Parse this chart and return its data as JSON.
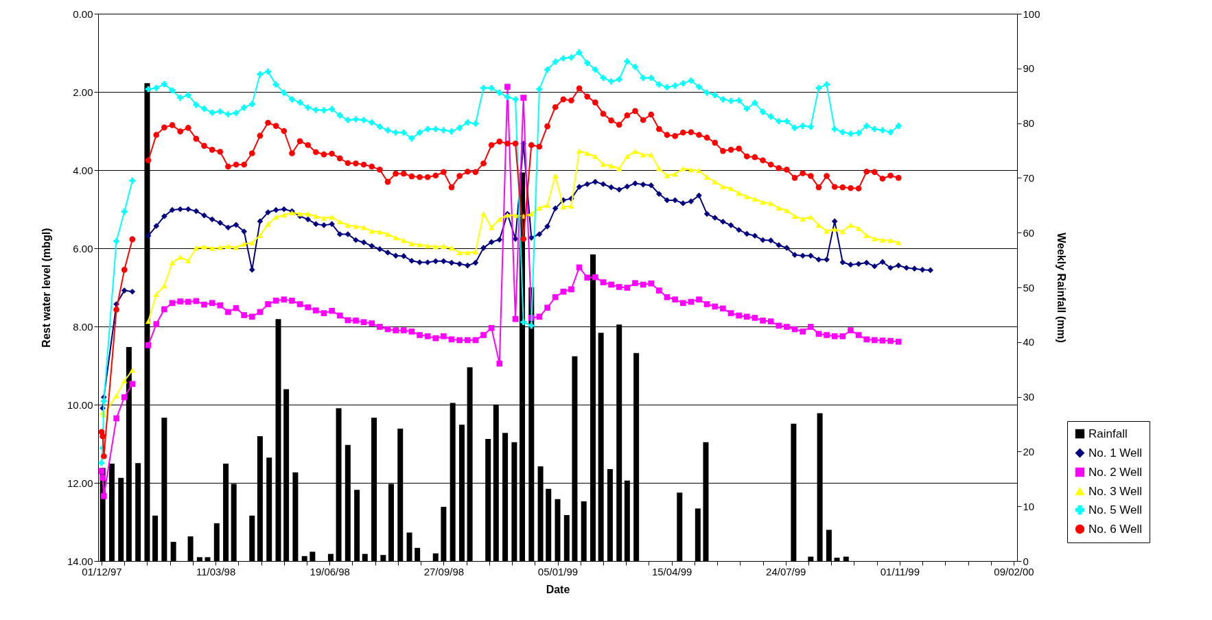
{
  "chart_data": {
    "type": "line",
    "xlabel": "Date",
    "ylabel": "Rest water level (mbgl)",
    "y2label": "Weekly Rainfall (mm)",
    "xlim": [
      "1997-12-01",
      "2000-02-09"
    ],
    "xticks": [
      {
        "value": "1997-12-01",
        "label": "01/12/97"
      },
      {
        "value": "1997-12-21",
        "label": null
      },
      {
        "value": "1998-01-10",
        "label": null
      },
      {
        "value": "1998-01-30",
        "label": null
      },
      {
        "value": "1998-02-19",
        "label": null
      },
      {
        "value": "1998-03-11",
        "label": "11/03/98"
      },
      {
        "value": "1998-03-31",
        "label": null
      },
      {
        "value": "1998-04-20",
        "label": null
      },
      {
        "value": "1998-05-10",
        "label": null
      },
      {
        "value": "1998-05-30",
        "label": null
      },
      {
        "value": "1998-06-19",
        "label": "19/06/98"
      },
      {
        "value": "1998-07-09",
        "label": null
      },
      {
        "value": "1998-07-29",
        "label": null
      },
      {
        "value": "1998-08-18",
        "label": null
      },
      {
        "value": "1998-09-07",
        "label": null
      },
      {
        "value": "1998-09-27",
        "label": "27/09/98"
      },
      {
        "value": "1998-10-17",
        "label": null
      },
      {
        "value": "1998-11-06",
        "label": null
      },
      {
        "value": "1998-11-26",
        "label": null
      },
      {
        "value": "1998-12-16",
        "label": null
      },
      {
        "value": "1999-01-05",
        "label": "05/01/99"
      },
      {
        "value": "1999-01-25",
        "label": null
      },
      {
        "value": "1999-02-14",
        "label": null
      },
      {
        "value": "1999-03-06",
        "label": null
      },
      {
        "value": "1999-03-26",
        "label": null
      },
      {
        "value": "1999-04-15",
        "label": "15/04/99"
      },
      {
        "value": "1999-05-05",
        "label": null
      },
      {
        "value": "1999-05-25",
        "label": null
      },
      {
        "value": "1999-06-14",
        "label": null
      },
      {
        "value": "1999-07-04",
        "label": null
      },
      {
        "value": "1999-07-24",
        "label": "24/07/99"
      },
      {
        "value": "1999-08-13",
        "label": null
      },
      {
        "value": "1999-09-02",
        "label": null
      },
      {
        "value": "1999-09-22",
        "label": null
      },
      {
        "value": "1999-10-12",
        "label": null
      },
      {
        "value": "1999-11-01",
        "label": "01/11/99"
      },
      {
        "value": "1999-11-21",
        "label": null
      },
      {
        "value": "1999-12-11",
        "label": null
      },
      {
        "value": "1999-12-31",
        "label": null
      },
      {
        "value": "2000-01-20",
        "label": null
      },
      {
        "value": "2000-02-09",
        "label": "09/02/00"
      }
    ],
    "ylim": [
      14,
      0
    ],
    "yticks": [
      {
        "value": 0,
        "label": "0.00"
      },
      {
        "value": 2,
        "label": "2.00"
      },
      {
        "value": 4,
        "label": "4.00"
      },
      {
        "value": 6,
        "label": "6.00"
      },
      {
        "value": 8,
        "label": "8.00"
      },
      {
        "value": 10,
        "label": "10.00"
      },
      {
        "value": 12,
        "label": "12.00"
      },
      {
        "value": 14,
        "label": "14.00"
      }
    ],
    "y2lim": [
      0,
      100
    ],
    "y2ticks": [
      0,
      10,
      20,
      30,
      40,
      50,
      60,
      70,
      80,
      90,
      100
    ],
    "grid": "y",
    "legend": "bottom right",
    "line_style": "solid",
    "x": [
      "1997-12-01",
      "1997-12-02",
      "1997-12-03",
      "1997-12-14",
      "1997-12-21",
      "1997-12-28",
      "1998-01-04",
      "1998-01-11",
      "1998-01-18",
      "1998-01-25",
      "1998-02-01",
      "1998-02-08",
      "1998-02-15",
      "1998-02-22",
      "1998-03-01",
      "1998-03-08",
      "1998-03-15",
      "1998-03-22",
      "1998-03-29",
      "1998-04-05",
      "1998-04-12",
      "1998-04-19",
      "1998-04-26",
      "1998-05-03",
      "1998-05-10",
      "1998-05-17",
      "1998-05-24",
      "1998-05-31",
      "1998-06-07",
      "1998-06-14",
      "1998-06-21",
      "1998-06-28",
      "1998-07-05",
      "1998-07-12",
      "1998-07-19",
      "1998-07-26",
      "1998-08-02",
      "1998-08-09",
      "1998-08-16",
      "1998-08-23",
      "1998-08-30",
      "1998-09-06",
      "1998-09-13",
      "1998-09-20",
      "1998-09-27",
      "1998-10-04",
      "1998-10-11",
      "1998-10-18",
      "1998-10-25",
      "1998-11-01",
      "1998-11-08",
      "1998-11-15",
      "1998-11-22",
      "1998-11-29",
      "1998-12-06",
      "1998-12-13",
      "1998-12-20",
      "1998-12-27",
      "1999-01-03",
      "1999-01-10",
      "1999-01-17",
      "1999-01-24",
      "1999-01-31",
      "1999-02-07",
      "1999-02-14",
      "1999-02-21",
      "1999-02-28",
      "1999-03-07",
      "1999-03-14",
      "1999-03-21",
      "1999-03-28",
      "1999-04-04",
      "1999-04-11",
      "1999-04-18",
      "1999-04-25",
      "1999-05-02",
      "1999-05-09",
      "1999-05-16",
      "1999-05-23",
      "1999-05-30",
      "1999-06-06",
      "1999-06-13",
      "1999-06-20",
      "1999-06-27",
      "1999-07-04",
      "1999-07-11",
      "1999-07-18",
      "1999-07-25",
      "1999-08-01",
      "1999-08-08",
      "1999-08-15",
      "1999-08-22",
      "1999-08-29",
      "1999-09-05",
      "1999-09-12",
      "1999-09-19",
      "1999-09-26",
      "1999-10-03",
      "1999-10-10",
      "1999-10-17",
      "1999-10-24",
      "1999-10-31",
      "1999-11-07",
      "1999-11-14",
      "1999-11-21",
      "1999-11-28"
    ],
    "series": [
      {
        "name": "Rainfall",
        "type": "bar",
        "axis": "y2",
        "color": "#000000",
        "x": [
          "1997-12-02",
          "1997-12-10",
          "1997-12-18",
          "1997-12-25",
          "1998-01-02",
          "1998-01-10",
          "1998-01-17",
          "1998-01-25",
          "1998-02-02",
          "1998-02-09",
          "1998-02-17",
          "1998-02-25",
          "1998-03-04",
          "1998-03-12",
          "1998-03-20",
          "1998-03-27",
          "1998-04-04",
          "1998-04-12",
          "1998-04-19",
          "1998-04-27",
          "1998-05-05",
          "1998-05-12",
          "1998-05-20",
          "1998-05-28",
          "1998-06-04",
          "1998-06-12",
          "1998-06-20",
          "1998-06-27",
          "1998-07-05",
          "1998-07-13",
          "1998-07-20",
          "1998-07-28",
          "1998-08-05",
          "1998-08-12",
          "1998-08-20",
          "1998-08-28",
          "1998-09-04",
          "1998-09-12",
          "1998-09-20",
          "1998-09-27",
          "1998-10-05",
          "1998-10-13",
          "1998-10-20",
          "1998-10-28",
          "1998-11-05",
          "1998-11-12",
          "1998-11-20",
          "1998-11-28",
          "1998-12-05",
          "1998-12-13",
          "1998-12-21",
          "1998-12-28",
          "1999-01-05",
          "1999-01-13",
          "1999-01-20",
          "1999-01-28",
          "1999-02-05",
          "1999-02-12",
          "1999-02-20",
          "1999-02-28",
          "1999-03-07",
          "1999-03-15",
          "1999-03-23",
          "1999-03-30",
          "1999-04-07",
          "1999-04-15",
          "1999-04-22",
          "1999-04-30",
          "1999-05-08",
          "1999-05-15",
          "1999-05-23",
          "1999-05-31",
          "1999-06-07",
          "1999-06-15",
          "1999-06-23",
          "1999-06-30",
          "1999-07-08",
          "1999-07-16",
          "1999-07-23",
          "1999-07-31",
          "1999-08-08",
          "1999-08-15",
          "1999-08-23",
          "1999-08-31",
          "1999-09-07",
          "1999-09-15"
        ],
        "values": [
          17,
          17.8,
          15.2,
          39.1,
          17.9,
          87.3,
          8.3,
          26.2,
          3.5,
          null,
          4.5,
          0.7,
          0.7,
          6.9,
          17.8,
          14.1,
          null,
          8.3,
          22.8,
          18.9,
          44.2,
          31.4,
          16.2,
          0.9,
          1.7,
          null,
          1.3,
          27.9,
          21.2,
          13.0,
          1.3,
          26.2,
          1.1,
          14.1,
          24.2,
          5.2,
          2.4,
          null,
          1.4,
          9.9,
          28.9,
          24.9,
          35.4,
          null,
          22.3,
          28.6,
          23.4,
          21.7,
          71,
          50,
          17.3,
          13.2,
          11.3,
          8.4,
          37.4,
          10.9,
          56.0,
          41.7,
          16.8,
          43.2,
          14.7,
          38.0,
          null,
          null,
          null,
          null,
          12.5,
          null,
          9.6,
          21.7,
          null,
          null,
          null,
          null,
          null,
          null,
          null,
          null,
          null,
          25.1,
          null,
          0.8,
          27.0,
          5.7,
          0.6,
          0.8
        ]
      },
      {
        "name": "No. 1 Well",
        "color": "#000080",
        "marker": "diamond",
        "values": [
          null,
          10.09,
          9.81,
          7.43,
          7.08,
          7.11,
          null,
          5.68,
          5.43,
          5.18,
          5.02,
          5.0,
          5.0,
          5.05,
          5.16,
          5.26,
          5.35,
          5.47,
          5.4,
          5.57,
          6.55,
          5.31,
          5.08,
          5.02,
          5.0,
          5.05,
          5.18,
          5.26,
          5.38,
          5.41,
          5.38,
          5.64,
          5.64,
          5.79,
          5.85,
          5.94,
          6.02,
          6.11,
          6.19,
          6.2,
          6.32,
          6.36,
          6.36,
          6.33,
          6.33,
          6.37,
          6.4,
          6.44,
          6.37,
          5.99,
          5.84,
          5.78,
          5.12,
          5.76,
          3.32,
          5.73,
          5.64,
          5.44,
          4.98,
          4.77,
          4.73,
          4.43,
          4.36,
          4.3,
          4.36,
          4.44,
          4.5,
          4.42,
          4.34,
          4.37,
          4.39,
          4.61,
          4.77,
          4.77,
          4.85,
          4.8,
          4.65,
          5.12,
          5.22,
          5.32,
          5.41,
          5.53,
          5.63,
          5.68,
          5.79,
          5.8,
          5.92,
          5.99,
          6.17,
          6.19,
          6.19,
          6.29,
          6.29,
          5.31,
          6.36,
          6.42,
          6.4,
          6.37,
          6.46,
          6.35,
          6.5,
          6.44,
          6.5,
          6.52,
          6.55,
          6.56
        ]
      },
      {
        "name": "No. 2 Well",
        "color": "#ff00ff",
        "marker": "square",
        "values": [
          11.7,
          11.87,
          12.34,
          10.35,
          9.81,
          9.47,
          null,
          8.48,
          7.94,
          7.56,
          7.4,
          7.36,
          7.37,
          7.35,
          7.44,
          7.4,
          7.46,
          7.63,
          7.53,
          7.71,
          7.75,
          7.63,
          7.43,
          7.34,
          7.31,
          7.34,
          7.43,
          7.51,
          7.59,
          7.66,
          7.6,
          7.72,
          7.84,
          7.85,
          7.89,
          7.92,
          8.01,
          8.07,
          8.1,
          8.1,
          8.13,
          8.22,
          8.25,
          8.3,
          8.25,
          8.33,
          8.35,
          8.35,
          8.35,
          8.22,
          8.04,
          8.95,
          1.87,
          7.81,
          2.15,
          7.78,
          7.75,
          7.52,
          7.25,
          7.11,
          7.05,
          6.49,
          6.75,
          6.74,
          6.87,
          6.93,
          6.99,
          7.01,
          6.89,
          6.93,
          6.9,
          7.08,
          7.25,
          7.31,
          7.4,
          7.37,
          7.31,
          7.43,
          7.49,
          7.54,
          7.66,
          7.72,
          7.75,
          7.78,
          7.85,
          7.87,
          7.98,
          8.01,
          8.07,
          8.13,
          8.01,
          8.19,
          8.22,
          8.25,
          8.25,
          8.1,
          8.22,
          8.33,
          8.35,
          8.36,
          8.37,
          8.39,
          null,
          null,
          null,
          null
        ]
      },
      {
        "name": "No. 3 Well",
        "color": "#ffff00",
        "marker": "triangle",
        "values": [
          null,
          10.2,
          10.26,
          9.77,
          9.39,
          9.12,
          null,
          7.87,
          7.18,
          6.96,
          6.37,
          6.23,
          6.32,
          5.99,
          5.96,
          6.0,
          5.98,
          5.95,
          5.98,
          5.89,
          5.86,
          5.67,
          5.38,
          5.2,
          5.15,
          5.09,
          5.12,
          5.12,
          5.18,
          5.23,
          5.2,
          5.32,
          5.41,
          5.44,
          5.47,
          5.56,
          5.58,
          5.64,
          5.73,
          5.8,
          5.88,
          5.91,
          5.94,
          5.96,
          5.95,
          5.99,
          6.11,
          6.11,
          6.09,
          5.12,
          5.47,
          5.26,
          5.15,
          5.16,
          5.18,
          5.12,
          4.97,
          4.9,
          4.14,
          4.94,
          4.92,
          3.51,
          3.57,
          3.65,
          3.85,
          3.89,
          3.96,
          3.65,
          3.52,
          3.61,
          3.61,
          3.96,
          4.14,
          4.1,
          3.96,
          3.99,
          4.01,
          4.18,
          4.3,
          4.42,
          4.47,
          4.59,
          4.68,
          4.74,
          4.82,
          4.85,
          4.97,
          5.03,
          5.18,
          5.25,
          5.2,
          5.41,
          5.56,
          5.51,
          5.57,
          5.41,
          5.49,
          5.67,
          5.76,
          5.79,
          5.8,
          5.85,
          null,
          null,
          null,
          null
        ]
      },
      {
        "name": "No. 5 Well",
        "color": "#00ffff",
        "marker": "cross",
        "values": [
          11.49,
          11.11,
          9.91,
          5.82,
          5.06,
          4.27,
          null,
          1.93,
          1.9,
          1.8,
          1.96,
          2.15,
          2.08,
          2.33,
          2.43,
          2.53,
          2.5,
          2.57,
          2.54,
          2.4,
          2.31,
          1.55,
          1.48,
          1.81,
          2.02,
          2.19,
          2.27,
          2.4,
          2.46,
          2.47,
          2.44,
          2.6,
          2.72,
          2.7,
          2.72,
          2.78,
          2.89,
          2.98,
          3.04,
          3.04,
          3.19,
          3.04,
          2.95,
          2.95,
          2.98,
          3.01,
          2.92,
          2.78,
          2.81,
          1.9,
          1.9,
          2.02,
          2.13,
          2.19,
          7.89,
          7.98,
          1.93,
          1.43,
          1.23,
          1.14,
          1.12,
          0.99,
          1.26,
          1.43,
          1.64,
          1.73,
          1.68,
          1.22,
          1.36,
          1.64,
          1.64,
          1.81,
          1.88,
          1.84,
          1.78,
          1.71,
          1.87,
          2.02,
          2.08,
          2.19,
          2.23,
          2.22,
          2.43,
          2.28,
          2.51,
          2.63,
          2.75,
          2.75,
          2.92,
          2.87,
          2.89,
          1.9,
          1.81,
          2.95,
          3.03,
          3.07,
          3.05,
          2.87,
          2.95,
          2.98,
          3.03,
          2.87,
          null,
          null,
          null,
          null
        ]
      },
      {
        "name": "No. 6 Well",
        "color": "#ff0000",
        "marker": "circle",
        "values": [
          10.7,
          10.81,
          11.32,
          7.57,
          6.55,
          5.77,
          null,
          3.75,
          3.1,
          2.91,
          2.85,
          3.01,
          2.92,
          3.2,
          3.38,
          3.48,
          3.53,
          3.91,
          3.86,
          3.86,
          3.57,
          3.12,
          2.79,
          2.87,
          3.0,
          3.57,
          3.26,
          3.36,
          3.54,
          3.6,
          3.58,
          3.7,
          3.82,
          3.83,
          3.86,
          3.91,
          3.99,
          4.3,
          4.09,
          4.09,
          4.16,
          4.18,
          4.18,
          4.14,
          4.05,
          4.44,
          4.15,
          4.04,
          4.05,
          3.83,
          3.36,
          3.27,
          3.32,
          3.32,
          5.76,
          3.36,
          3.4,
          2.88,
          2.39,
          2.19,
          2.22,
          1.91,
          2.12,
          2.27,
          2.56,
          2.73,
          2.84,
          2.6,
          2.49,
          2.72,
          2.58,
          2.95,
          3.1,
          3.13,
          3.04,
          3.03,
          3.1,
          3.17,
          3.3,
          3.51,
          3.48,
          3.45,
          3.65,
          3.67,
          3.75,
          3.86,
          3.95,
          3.99,
          4.2,
          4.08,
          4.15,
          4.44,
          4.15,
          4.43,
          4.44,
          4.46,
          4.47,
          4.04,
          4.05,
          4.22,
          4.14,
          4.2,
          null,
          null,
          null,
          null
        ]
      }
    ]
  }
}
